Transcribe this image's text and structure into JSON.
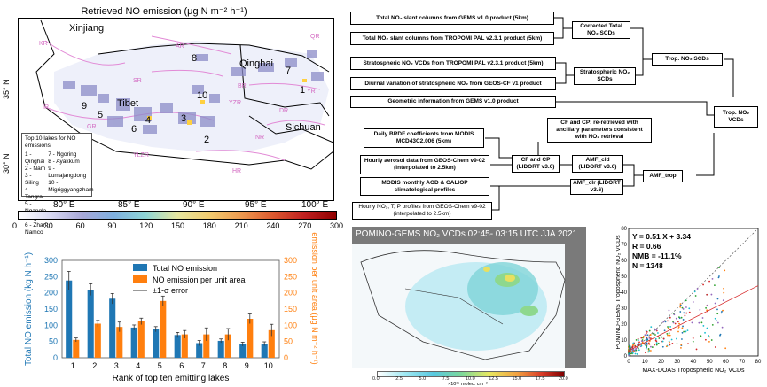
{
  "map": {
    "title": "Retrieved NO emission (μg N m⁻² h⁻¹)",
    "regions": {
      "xinjiang": "Xinjiang",
      "qinghai": "Qinghai",
      "tibet": "Tibet",
      "sichuan": "Sichuan"
    },
    "basin_labels": {
      "kr": "KR",
      "ar": "AR",
      "qr": "QR",
      "sr": "SR",
      "br": "BR",
      "yr": "YR",
      "ir": "IR",
      "yzr": "YZR",
      "gr": "GR",
      "nr": "NR",
      "ylzr": "YLZR",
      "hr": "HR",
      "dr": "DR"
    },
    "lake_numbers": [
      "1",
      "2",
      "3",
      "4",
      "5",
      "6",
      "7",
      "8",
      "9",
      "10"
    ],
    "lat_labels": [
      "35° N",
      "30° N"
    ],
    "lon_labels": [
      "80° E",
      "85° E",
      "90° E",
      "95° E",
      "100° E"
    ],
    "legend_title": "Top 10 lakes for NO emissions",
    "lakes_left": [
      "1 - Qinghai",
      "2 - Nam",
      "3 - Siling",
      "4 - Tangra",
      "5 - Ngangla Ringco",
      "6 - Zhari Namco"
    ],
    "lakes_right": [
      "7 - Ngoring",
      "8 - Ayakkum",
      "9 - Lumajangdong",
      "10 - Migriggyangzham"
    ],
    "colorbar_ticks": [
      "0",
      "30",
      "60",
      "90",
      "120",
      "150",
      "180",
      "210",
      "240",
      "270",
      "300"
    ]
  },
  "workflow": {
    "boxes": {
      "gems_slant": "Total NO₂ slant columns from GEMS v1.0 product (5km)",
      "tropomi_slant": "Total NO₂ slant columns from TROPOMI PAL v2.3.1 product (5km)",
      "corrected": "Corrected Total NO₂ SCDs",
      "strat_vcd": "Stratospheric NO₂ VCDs from TROPOMI PAL v2.3.1 product (5km)",
      "diurnal": "Diurnal variation of stratospheric NO₂ from GEOS-CF v1 product",
      "strat_scd": "Stratospheric NO₂ SCDs",
      "trop_scd": "Trop. NO₂ SCDs",
      "geometric": "Geometric information from GEMS v1.0 product",
      "trop_vcd": "Trop. NO₂ VCDs",
      "brdf": "Daily BRDF coefficients from MODIS MCD43C2.006 (5km)",
      "cf_cp_retrieved": "CF and CP: re-retrieved with ancillary parameters consistent with NO₂ retrieval",
      "aerosol": "Hourly aerosol data from GEOS-Chem v9-02 (interpolated to 2.5km)",
      "cf_cp": "CF and CP (LIDORT v3.6)",
      "amf_cld": "AMF_cld (LIDORT v3.6)",
      "modis_aod": "MODIS monthly AOD & CALIOP climatological profiles",
      "amf_clr": "AMF_clr (LIDORT v3.6)",
      "amf_trop": "AMF_trop",
      "profiles": "Hourly NO₂, T, P profiles from GEOS-Chem v9-02 (interpolated to 2.5km)"
    }
  },
  "bar_chart": {
    "chart_data": {
      "type": "bar",
      "categories": [
        "1",
        "2",
        "3",
        "4",
        "5",
        "6",
        "7",
        "8",
        "9",
        "10"
      ],
      "series": [
        {
          "name": "Total NO emission",
          "values": [
            238,
            210,
            182,
            93,
            88,
            70,
            45,
            52,
            42,
            43
          ],
          "errors": [
            28,
            18,
            16,
            8,
            8,
            8,
            8,
            6,
            6,
            6
          ],
          "color": "#1f77b4"
        },
        {
          "name": "NO emission per unit area",
          "values": [
            55,
            105,
            95,
            112,
            175,
            72,
            72,
            72,
            120,
            85
          ],
          "errors": [
            6,
            10,
            15,
            10,
            15,
            12,
            20,
            18,
            15,
            18
          ],
          "color": "#ff7f0e"
        }
      ],
      "error_legend": "±1-σ error",
      "xlabel": "Rank of top ten emitting lakes",
      "ylabel_left": "Total NO emission (kg N h⁻¹)",
      "ylabel_right": "NO emission per unit area (μg N m⁻² h⁻¹)",
      "ylim": [
        0,
        300
      ],
      "yticks": [
        "0",
        "50",
        "100",
        "150",
        "200",
        "250",
        "300"
      ]
    }
  },
  "gems_map": {
    "title": "POMINO-GEMS NO₂ VCDs 02:45- 03:15 UTC JJA 2021",
    "colorbar_ticks": [
      "0.0",
      "2.5",
      "5.0",
      "7.5",
      "10.0",
      "12.5",
      "15.0",
      "17.5",
      "20.0"
    ],
    "colorbar_unit": "×10¹⁵ molec. cm⁻²"
  },
  "scatter": {
    "chart_data": {
      "type": "scatter",
      "stats": [
        "Y = 0.51 X + 3.34",
        "R = 0.66",
        "NMB = -11.1%",
        "N = 1348"
      ],
      "xlabel": "MAX-DOAS Tropospheric NO₂ VCDs",
      "ylabel": "POMINO-GEMS Tropospheric NO₂ VCDs",
      "xlim": [
        0,
        80
      ],
      "ylim": [
        0,
        80
      ],
      "ticks": [
        "0",
        "10",
        "20",
        "30",
        "40",
        "50",
        "60",
        "70",
        "80"
      ],
      "fit": {
        "slope": 0.51,
        "intercept": 3.34
      }
    }
  }
}
